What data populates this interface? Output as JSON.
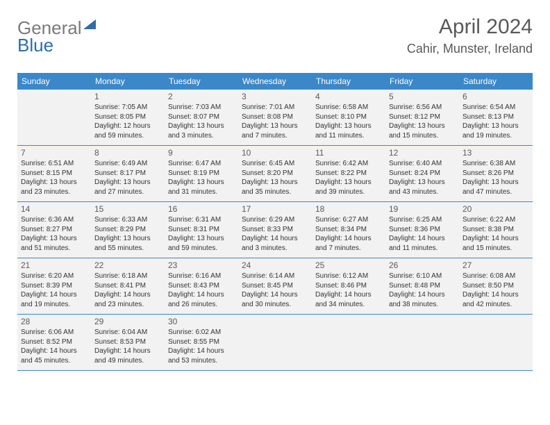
{
  "logo": {
    "part1": "General",
    "part2": "Blue"
  },
  "title": "April 2024",
  "location": "Cahir, Munster, Ireland",
  "header_bg": "#3b87c8",
  "cell_bg": "#f2f2f2",
  "day_names": [
    "Sunday",
    "Monday",
    "Tuesday",
    "Wednesday",
    "Thursday",
    "Friday",
    "Saturday"
  ],
  "weeks": [
    [
      null,
      {
        "n": "1",
        "sr": "Sunrise: 7:05 AM",
        "ss": "Sunset: 8:05 PM",
        "d1": "Daylight: 12 hours",
        "d2": "and 59 minutes."
      },
      {
        "n": "2",
        "sr": "Sunrise: 7:03 AM",
        "ss": "Sunset: 8:07 PM",
        "d1": "Daylight: 13 hours",
        "d2": "and 3 minutes."
      },
      {
        "n": "3",
        "sr": "Sunrise: 7:01 AM",
        "ss": "Sunset: 8:08 PM",
        "d1": "Daylight: 13 hours",
        "d2": "and 7 minutes."
      },
      {
        "n": "4",
        "sr": "Sunrise: 6:58 AM",
        "ss": "Sunset: 8:10 PM",
        "d1": "Daylight: 13 hours",
        "d2": "and 11 minutes."
      },
      {
        "n": "5",
        "sr": "Sunrise: 6:56 AM",
        "ss": "Sunset: 8:12 PM",
        "d1": "Daylight: 13 hours",
        "d2": "and 15 minutes."
      },
      {
        "n": "6",
        "sr": "Sunrise: 6:54 AM",
        "ss": "Sunset: 8:13 PM",
        "d1": "Daylight: 13 hours",
        "d2": "and 19 minutes."
      }
    ],
    [
      {
        "n": "7",
        "sr": "Sunrise: 6:51 AM",
        "ss": "Sunset: 8:15 PM",
        "d1": "Daylight: 13 hours",
        "d2": "and 23 minutes."
      },
      {
        "n": "8",
        "sr": "Sunrise: 6:49 AM",
        "ss": "Sunset: 8:17 PM",
        "d1": "Daylight: 13 hours",
        "d2": "and 27 minutes."
      },
      {
        "n": "9",
        "sr": "Sunrise: 6:47 AM",
        "ss": "Sunset: 8:19 PM",
        "d1": "Daylight: 13 hours",
        "d2": "and 31 minutes."
      },
      {
        "n": "10",
        "sr": "Sunrise: 6:45 AM",
        "ss": "Sunset: 8:20 PM",
        "d1": "Daylight: 13 hours",
        "d2": "and 35 minutes."
      },
      {
        "n": "11",
        "sr": "Sunrise: 6:42 AM",
        "ss": "Sunset: 8:22 PM",
        "d1": "Daylight: 13 hours",
        "d2": "and 39 minutes."
      },
      {
        "n": "12",
        "sr": "Sunrise: 6:40 AM",
        "ss": "Sunset: 8:24 PM",
        "d1": "Daylight: 13 hours",
        "d2": "and 43 minutes."
      },
      {
        "n": "13",
        "sr": "Sunrise: 6:38 AM",
        "ss": "Sunset: 8:26 PM",
        "d1": "Daylight: 13 hours",
        "d2": "and 47 minutes."
      }
    ],
    [
      {
        "n": "14",
        "sr": "Sunrise: 6:36 AM",
        "ss": "Sunset: 8:27 PM",
        "d1": "Daylight: 13 hours",
        "d2": "and 51 minutes."
      },
      {
        "n": "15",
        "sr": "Sunrise: 6:33 AM",
        "ss": "Sunset: 8:29 PM",
        "d1": "Daylight: 13 hours",
        "d2": "and 55 minutes."
      },
      {
        "n": "16",
        "sr": "Sunrise: 6:31 AM",
        "ss": "Sunset: 8:31 PM",
        "d1": "Daylight: 13 hours",
        "d2": "and 59 minutes."
      },
      {
        "n": "17",
        "sr": "Sunrise: 6:29 AM",
        "ss": "Sunset: 8:33 PM",
        "d1": "Daylight: 14 hours",
        "d2": "and 3 minutes."
      },
      {
        "n": "18",
        "sr": "Sunrise: 6:27 AM",
        "ss": "Sunset: 8:34 PM",
        "d1": "Daylight: 14 hours",
        "d2": "and 7 minutes."
      },
      {
        "n": "19",
        "sr": "Sunrise: 6:25 AM",
        "ss": "Sunset: 8:36 PM",
        "d1": "Daylight: 14 hours",
        "d2": "and 11 minutes."
      },
      {
        "n": "20",
        "sr": "Sunrise: 6:22 AM",
        "ss": "Sunset: 8:38 PM",
        "d1": "Daylight: 14 hours",
        "d2": "and 15 minutes."
      }
    ],
    [
      {
        "n": "21",
        "sr": "Sunrise: 6:20 AM",
        "ss": "Sunset: 8:39 PM",
        "d1": "Daylight: 14 hours",
        "d2": "and 19 minutes."
      },
      {
        "n": "22",
        "sr": "Sunrise: 6:18 AM",
        "ss": "Sunset: 8:41 PM",
        "d1": "Daylight: 14 hours",
        "d2": "and 23 minutes."
      },
      {
        "n": "23",
        "sr": "Sunrise: 6:16 AM",
        "ss": "Sunset: 8:43 PM",
        "d1": "Daylight: 14 hours",
        "d2": "and 26 minutes."
      },
      {
        "n": "24",
        "sr": "Sunrise: 6:14 AM",
        "ss": "Sunset: 8:45 PM",
        "d1": "Daylight: 14 hours",
        "d2": "and 30 minutes."
      },
      {
        "n": "25",
        "sr": "Sunrise: 6:12 AM",
        "ss": "Sunset: 8:46 PM",
        "d1": "Daylight: 14 hours",
        "d2": "and 34 minutes."
      },
      {
        "n": "26",
        "sr": "Sunrise: 6:10 AM",
        "ss": "Sunset: 8:48 PM",
        "d1": "Daylight: 14 hours",
        "d2": "and 38 minutes."
      },
      {
        "n": "27",
        "sr": "Sunrise: 6:08 AM",
        "ss": "Sunset: 8:50 PM",
        "d1": "Daylight: 14 hours",
        "d2": "and 42 minutes."
      }
    ],
    [
      {
        "n": "28",
        "sr": "Sunrise: 6:06 AM",
        "ss": "Sunset: 8:52 PM",
        "d1": "Daylight: 14 hours",
        "d2": "and 45 minutes."
      },
      {
        "n": "29",
        "sr": "Sunrise: 6:04 AM",
        "ss": "Sunset: 8:53 PM",
        "d1": "Daylight: 14 hours",
        "d2": "and 49 minutes."
      },
      {
        "n": "30",
        "sr": "Sunrise: 6:02 AM",
        "ss": "Sunset: 8:55 PM",
        "d1": "Daylight: 14 hours",
        "d2": "and 53 minutes."
      },
      null,
      null,
      null,
      null
    ]
  ]
}
